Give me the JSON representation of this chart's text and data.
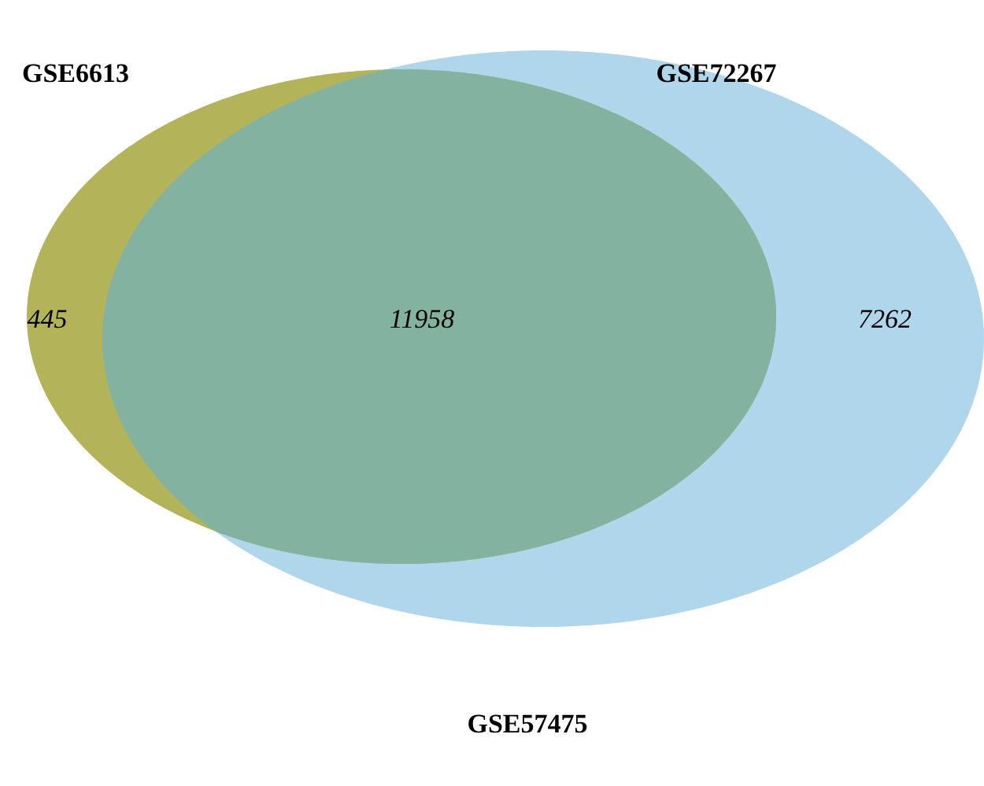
{
  "chart_data": {
    "type": "other",
    "categories": [
      null,
      null,
      null
    ],
    "values": [
      445,
      11958,
      7262
    ],
    "data_labels": true,
    "colors": [
      "#b3b35a",
      "#83b3a0",
      "#b0d6ec"
    ],
    "annotations": [
      "GSE6613",
      "GSE72267",
      "GSE57475"
    ]
  }
}
